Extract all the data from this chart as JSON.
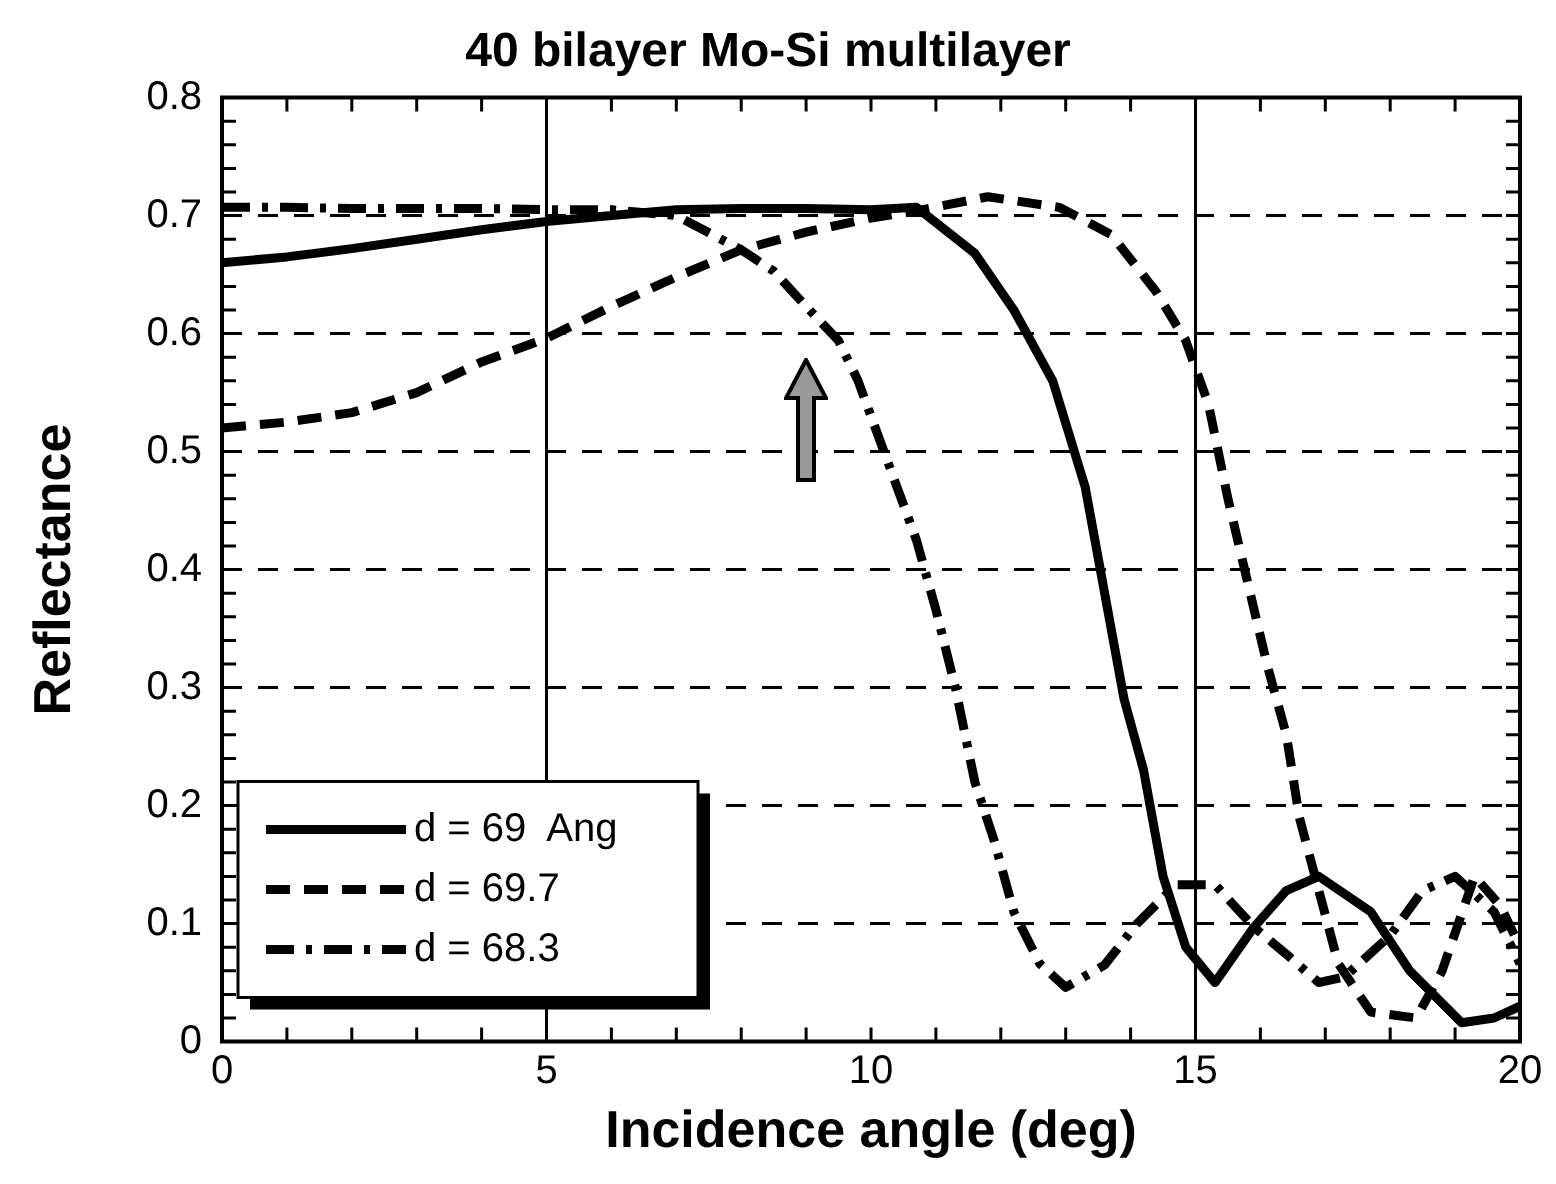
{
  "chart_data": {
    "type": "line",
    "title": "40 bilayer Mo-Si multilayer",
    "xlabel": "Incidence angle (deg)",
    "ylabel": "Reflectance",
    "xlim": [
      0,
      20
    ],
    "xticks": [
      0,
      5,
      10,
      15,
      20
    ],
    "ylim": [
      0,
      0.8
    ],
    "yticks": [
      0,
      0.1,
      0.2,
      0.3,
      0.4,
      0.5,
      0.6,
      0.7,
      0.8
    ],
    "grid": "y",
    "legend": "bottom left",
    "marker": "none",
    "ref_lines": [
      {
        "axis": "x",
        "value": 5,
        "color": "#000000",
        "line_style": "solid"
      },
      {
        "axis": "x",
        "value": 15,
        "color": "#000000",
        "line_style": "solid"
      }
    ],
    "series": [
      {
        "name": "d = 69  Ang",
        "color": "#000000",
        "line_style": "solid",
        "x": [
          0,
          1,
          2,
          3,
          4,
          5,
          6,
          7,
          8,
          9,
          10,
          10.7,
          11.6,
          12.2,
          12.8,
          13.3,
          13.6,
          13.9,
          14.2,
          14.5,
          14.85,
          15.3,
          15.9,
          16.4,
          16.9,
          17.7,
          18.3,
          19.1,
          19.6,
          20
        ],
        "values": [
          0.66,
          0.665,
          0.672,
          0.68,
          0.688,
          0.695,
          0.7,
          0.705,
          0.706,
          0.706,
          0.705,
          0.707,
          0.668,
          0.62,
          0.56,
          0.47,
          0.38,
          0.29,
          0.23,
          0.14,
          0.08,
          0.05,
          0.097,
          0.128,
          0.14,
          0.11,
          0.06,
          0.016,
          0.02,
          0.03
        ]
      },
      {
        "name": "d = 69.7",
        "color": "#000000",
        "line_style": "dashed",
        "x": [
          0,
          1,
          2,
          3,
          4,
          5,
          6,
          7,
          8,
          9,
          10,
          10.7,
          11.8,
          12.9,
          13.7,
          14.4,
          14.85,
          15.2,
          15.5,
          15.8,
          16.1,
          16.4,
          16.6,
          16.9,
          17.2,
          17.7,
          18.4,
          18.8,
          19.3,
          19.7,
          20
        ],
        "values": [
          0.52,
          0.525,
          0.533,
          0.55,
          0.576,
          0.596,
          0.623,
          0.648,
          0.671,
          0.686,
          0.698,
          0.704,
          0.716,
          0.707,
          0.684,
          0.635,
          0.594,
          0.54,
          0.46,
          0.39,
          0.32,
          0.26,
          0.19,
          0.128,
          0.066,
          0.025,
          0.02,
          0.06,
          0.14,
          0.115,
          0.08
        ]
      },
      {
        "name": "d = 68.3",
        "color": "#000000",
        "line_style": "dashdot",
        "x": [
          0,
          1,
          2,
          3,
          4,
          5,
          6,
          7,
          8,
          8.5,
          9,
          9.5,
          9.8,
          10.2,
          10.7,
          11,
          11.3,
          11.6,
          11.9,
          12.2,
          12.6,
          13,
          13.6,
          14.1,
          14.7,
          15.3,
          15.9,
          16.4,
          16.9,
          17.3,
          18,
          18.5,
          19,
          19.6,
          20
        ],
        "values": [
          0.707,
          0.707,
          0.706,
          0.706,
          0.706,
          0.705,
          0.705,
          0.7,
          0.671,
          0.653,
          0.623,
          0.594,
          0.56,
          0.5,
          0.425,
          0.366,
          0.3,
          0.22,
          0.17,
          0.11,
          0.066,
          0.046,
          0.065,
          0.1,
          0.133,
          0.133,
          0.097,
          0.074,
          0.05,
          0.055,
          0.09,
          0.128,
          0.14,
          0.11,
          0.066
        ]
      }
    ]
  }
}
